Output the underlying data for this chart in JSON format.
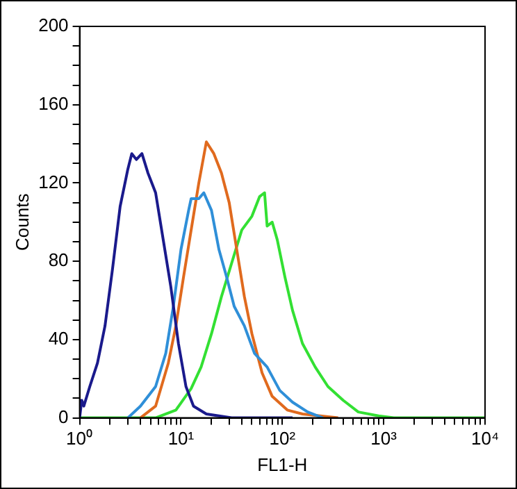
{
  "chart_data": {
    "type": "line",
    "xlabel": "FL1-H",
    "ylabel": "Counts",
    "log": "x",
    "grid": false,
    "legend": false,
    "marker": "none",
    "line_style": "solid",
    "xlim": [
      1,
      10000
    ],
    "ylim": [
      0,
      200
    ],
    "xticks": [
      {
        "value": 1,
        "label": "10⁰"
      },
      {
        "value": 2,
        "label": null
      },
      {
        "value": 3,
        "label": null
      },
      {
        "value": 4,
        "label": null
      },
      {
        "value": 5,
        "label": null
      },
      {
        "value": 6,
        "label": null
      },
      {
        "value": 7,
        "label": null
      },
      {
        "value": 8,
        "label": null
      },
      {
        "value": 9,
        "label": null
      },
      {
        "value": 10,
        "label": "10¹"
      },
      {
        "value": 20,
        "label": null
      },
      {
        "value": 30,
        "label": null
      },
      {
        "value": 40,
        "label": null
      },
      {
        "value": 50,
        "label": null
      },
      {
        "value": 60,
        "label": null
      },
      {
        "value": 70,
        "label": null
      },
      {
        "value": 80,
        "label": null
      },
      {
        "value": 90,
        "label": null
      },
      {
        "value": 100,
        "label": "10²"
      },
      {
        "value": 200,
        "label": null
      },
      {
        "value": 300,
        "label": null
      },
      {
        "value": 400,
        "label": null
      },
      {
        "value": 500,
        "label": null
      },
      {
        "value": 600,
        "label": null
      },
      {
        "value": 700,
        "label": null
      },
      {
        "value": 800,
        "label": null
      },
      {
        "value": 900,
        "label": null
      },
      {
        "value": 1000,
        "label": "10³"
      },
      {
        "value": 2000,
        "label": null
      },
      {
        "value": 3000,
        "label": null
      },
      {
        "value": 4000,
        "label": null
      },
      {
        "value": 5000,
        "label": null
      },
      {
        "value": 6000,
        "label": null
      },
      {
        "value": 7000,
        "label": null
      },
      {
        "value": 8000,
        "label": null
      },
      {
        "value": 9000,
        "label": null
      },
      {
        "value": 10000,
        "label": "10⁴"
      }
    ],
    "yticks": [
      0,
      {
        "value": 10,
        "label": null
      },
      {
        "value": 20,
        "label": null
      },
      {
        "value": 30,
        "label": null
      },
      40,
      {
        "value": 50,
        "label": null
      },
      {
        "value": 60,
        "label": null
      },
      {
        "value": 70,
        "label": null
      },
      80,
      {
        "value": 90,
        "label": null
      },
      {
        "value": 100,
        "label": null
      },
      {
        "value": 110,
        "label": null
      },
      120,
      {
        "value": 130,
        "label": null
      },
      {
        "value": 140,
        "label": null
      },
      {
        "value": 150,
        "label": null
      },
      160,
      {
        "value": 170,
        "label": null
      },
      {
        "value": 180,
        "label": null
      },
      {
        "value": 190,
        "label": null
      },
      200
    ],
    "series": [
      {
        "color": "#1a1a8c",
        "x": [
          1,
          1.05,
          1.1,
          1.26,
          1.5,
          1.78,
          2.11,
          2.51,
          2.99,
          3.27,
          3.63,
          4.12,
          4.73,
          5.62,
          6.68,
          7.94,
          9.44,
          11.2,
          13.3,
          17.8,
          31.6,
          126
        ],
        "values": [
          0,
          9,
          6,
          16,
          28,
          47,
          76,
          108,
          127,
          135,
          132,
          135,
          125,
          115,
          91,
          67,
          38,
          16,
          6,
          2,
          0,
          0
        ]
      },
      {
        "color": "#2f8fd8",
        "x": [
          2.99,
          3.98,
          5.62,
          7.08,
          8.41,
          10,
          11.9,
          12.6,
          15,
          16.8,
          20,
          23.7,
          28.2,
          33.5,
          42.2,
          53.1,
          70.8,
          94.4,
          126,
          178,
          251
        ],
        "values": [
          0,
          6,
          16,
          33,
          57,
          86,
          106,
          112,
          112,
          115,
          106,
          86,
          72,
          57,
          47,
          33,
          26,
          14,
          8,
          3,
          0
        ]
      },
      {
        "color": "#e06a1e",
        "x": [
          3.98,
          5.62,
          7.5,
          8.91,
          10.6,
          12.6,
          15,
          17.8,
          21.1,
          25.1,
          29.9,
          35.5,
          42.2,
          50.1,
          63.1,
          79.4,
          112,
          158,
          355
        ],
        "values": [
          0,
          6,
          28,
          47,
          72,
          96,
          120,
          141,
          135,
          125,
          110,
          86,
          62,
          43,
          23,
          11,
          4,
          2,
          0
        ]
      },
      {
        "color": "#33e033",
        "x": [
          1,
          5.62,
          8.91,
          12.6,
          15.8,
          20,
          25.1,
          31.6,
          39.8,
          50.1,
          59.6,
          66.8,
          70.8,
          79.4,
          89.1,
          106,
          126,
          158,
          211,
          282,
          398,
          562,
          891,
          1259,
          10000
        ],
        "values": [
          0,
          0,
          4,
          15,
          26,
          43,
          62,
          79,
          96,
          103,
          113,
          115,
          98,
          100,
          91,
          72,
          55,
          38,
          26,
          16,
          9,
          3,
          1,
          0,
          0
        ]
      }
    ]
  }
}
